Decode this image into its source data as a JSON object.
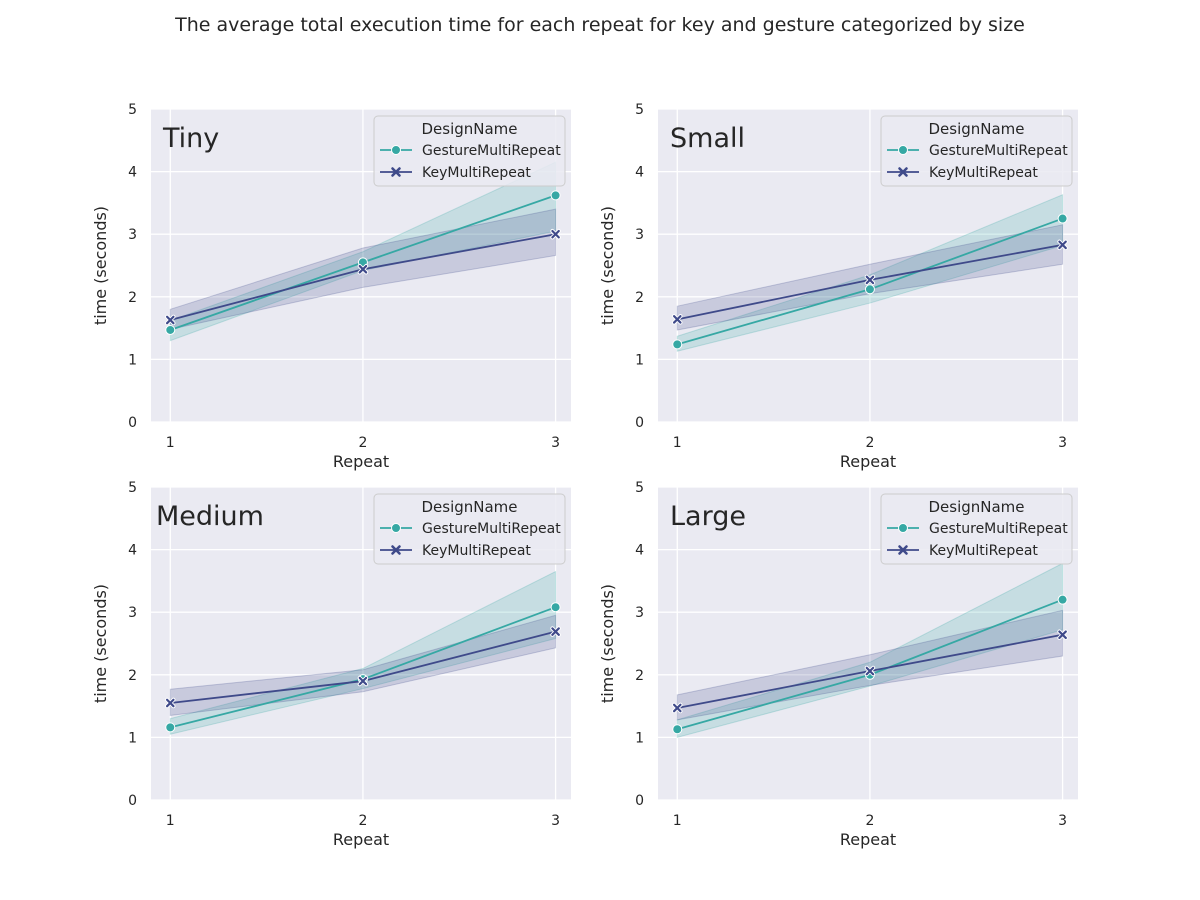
{
  "figure": {
    "title": "The average total execution time for each repeat for key and gesture categorized by size"
  },
  "chart_data": [
    {
      "type": "line",
      "panel_label": "Tiny",
      "xlabel": "Repeat",
      "ylabel": "time (seconds)",
      "x": [
        1,
        2,
        3
      ],
      "xlim": [
        0.9,
        3.08
      ],
      "ylim": [
        0,
        5
      ],
      "yticks": [
        0,
        1,
        2,
        3,
        4,
        5
      ],
      "xticks": [
        1,
        2,
        3
      ],
      "grid": true,
      "legend_title": "DesignName",
      "legend_position": "top-right",
      "series": [
        {
          "name": "GestureMultiRepeat",
          "marker": "circle",
          "color": "#36a8a4",
          "values": [
            1.47,
            2.55,
            3.62
          ],
          "ci_low": [
            1.3,
            2.42,
            3.05
          ],
          "ci_high": [
            1.62,
            2.72,
            4.15
          ]
        },
        {
          "name": "KeyMultiRepeat",
          "marker": "x",
          "color": "#3f4a8a",
          "values": [
            1.63,
            2.44,
            3.0
          ],
          "ci_low": [
            1.48,
            2.15,
            2.66
          ],
          "ci_high": [
            1.8,
            2.78,
            3.4
          ]
        }
      ]
    },
    {
      "type": "line",
      "panel_label": "Small",
      "xlabel": "Repeat",
      "ylabel": "time (seconds)",
      "x": [
        1,
        2,
        3
      ],
      "xlim": [
        0.9,
        3.08
      ],
      "ylim": [
        0,
        5
      ],
      "yticks": [
        0,
        1,
        2,
        3,
        4,
        5
      ],
      "xticks": [
        1,
        2,
        3
      ],
      "grid": true,
      "legend_title": "DesignName",
      "legend_position": "top-right",
      "series": [
        {
          "name": "GestureMultiRepeat",
          "marker": "circle",
          "color": "#36a8a4",
          "values": [
            1.24,
            2.12,
            3.25
          ],
          "ci_low": [
            1.13,
            1.9,
            2.82
          ],
          "ci_high": [
            1.37,
            2.35,
            3.63
          ]
        },
        {
          "name": "KeyMultiRepeat",
          "marker": "x",
          "color": "#3f4a8a",
          "values": [
            1.64,
            2.27,
            2.83
          ],
          "ci_low": [
            1.47,
            2.05,
            2.52
          ],
          "ci_high": [
            1.85,
            2.52,
            3.15
          ]
        }
      ]
    },
    {
      "type": "line",
      "panel_label": "Medium",
      "xlabel": "Repeat",
      "ylabel": "time (seconds)",
      "x": [
        1,
        2,
        3
      ],
      "xlim": [
        0.9,
        3.08
      ],
      "ylim": [
        0,
        5
      ],
      "yticks": [
        0,
        1,
        2,
        3,
        4,
        5
      ],
      "xticks": [
        1,
        2,
        3
      ],
      "grid": true,
      "legend_title": "DesignName",
      "legend_position": "top-right",
      "series": [
        {
          "name": "GestureMultiRepeat",
          "marker": "circle",
          "color": "#36a8a4",
          "values": [
            1.16,
            1.93,
            3.08
          ],
          "ci_low": [
            1.05,
            1.78,
            2.58
          ],
          "ci_high": [
            1.3,
            2.1,
            3.65
          ]
        },
        {
          "name": "KeyMultiRepeat",
          "marker": "x",
          "color": "#3f4a8a",
          "values": [
            1.55,
            1.9,
            2.69
          ],
          "ci_low": [
            1.35,
            1.73,
            2.43
          ],
          "ci_high": [
            1.77,
            2.08,
            2.95
          ]
        }
      ]
    },
    {
      "type": "line",
      "panel_label": "Large",
      "xlabel": "Repeat",
      "ylabel": "time (seconds)",
      "x": [
        1,
        2,
        3
      ],
      "xlim": [
        0.9,
        3.08
      ],
      "ylim": [
        0,
        5
      ],
      "yticks": [
        0,
        1,
        2,
        3,
        4,
        5
      ],
      "xticks": [
        1,
        2,
        3
      ],
      "grid": true,
      "legend_title": "DesignName",
      "legend_position": "top-right",
      "series": [
        {
          "name": "GestureMultiRepeat",
          "marker": "circle",
          "color": "#36a8a4",
          "values": [
            1.13,
            2.0,
            3.2
          ],
          "ci_low": [
            1.0,
            1.82,
            2.72
          ],
          "ci_high": [
            1.28,
            2.2,
            3.78
          ]
        },
        {
          "name": "KeyMultiRepeat",
          "marker": "x",
          "color": "#3f4a8a",
          "values": [
            1.47,
            2.06,
            2.64
          ],
          "ci_low": [
            1.28,
            1.83,
            2.3
          ],
          "ci_high": [
            1.68,
            2.32,
            3.03
          ]
        }
      ]
    }
  ]
}
